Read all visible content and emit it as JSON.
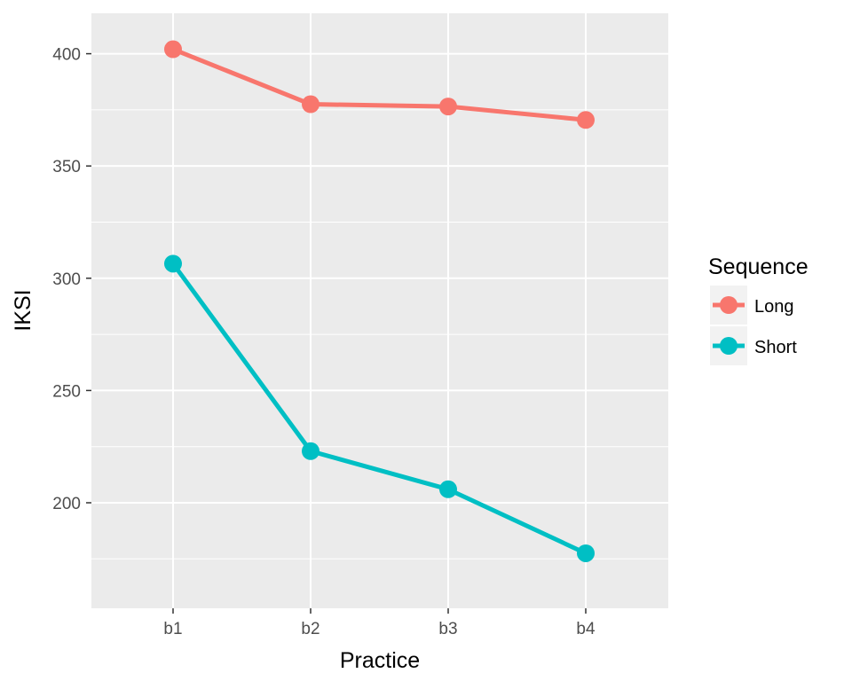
{
  "chart_data": {
    "type": "line",
    "title": "",
    "xlabel": "Practice",
    "ylabel": "IKSI",
    "categories": [
      "b1",
      "b2",
      "b3",
      "b4"
    ],
    "ylim": [
      153,
      418
    ],
    "yticks": [
      200,
      250,
      300,
      350,
      400
    ],
    "grid": true,
    "legend": {
      "title": "Sequence",
      "placement": "right"
    },
    "series": [
      {
        "name": "Long",
        "color": "#F8766D",
        "values": [
          402,
          377.5,
          376.5,
          370.5
        ]
      },
      {
        "name": "Short",
        "color": "#00BFC4",
        "values": [
          306.5,
          223,
          206,
          177.5
        ]
      }
    ],
    "panel_background": "#EBEBEB",
    "grid_color": "#FFFFFF"
  }
}
